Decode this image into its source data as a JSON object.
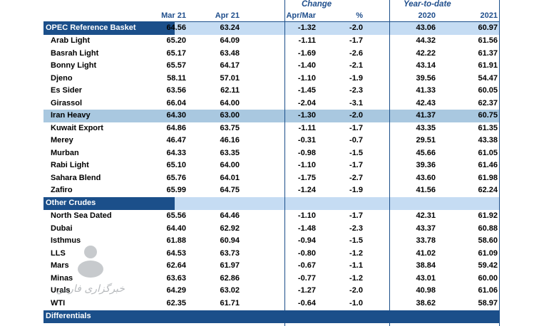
{
  "header": {
    "change": "Change",
    "ytd": "Year-to-date",
    "cols": [
      "Mar 21",
      "Apr 21",
      "Apr/Mar",
      "%",
      "2020",
      "2021"
    ]
  },
  "sections": {
    "opec": "OPEC Reference Basket",
    "other": "Other Crudes",
    "diff": "Differentials"
  },
  "basket_row": [
    "64.56",
    "63.24",
    "-1.32",
    "-2.0",
    "43.06",
    "60.97"
  ],
  "opec_rows": [
    {
      "name": "Arab Light",
      "v": [
        "65.20",
        "64.09",
        "-1.11",
        "-1.7",
        "44.32",
        "61.56"
      ]
    },
    {
      "name": "Basrah Light",
      "v": [
        "65.17",
        "63.48",
        "-1.69",
        "-2.6",
        "42.22",
        "61.37"
      ]
    },
    {
      "name": "Bonny Light",
      "v": [
        "65.57",
        "64.17",
        "-1.40",
        "-2.1",
        "43.14",
        "61.91"
      ]
    },
    {
      "name": "Djeno",
      "v": [
        "58.11",
        "57.01",
        "-1.10",
        "-1.9",
        "39.56",
        "54.47"
      ]
    },
    {
      "name": "Es Sider",
      "v": [
        "63.56",
        "62.11",
        "-1.45",
        "-2.3",
        "41.33",
        "60.05"
      ]
    },
    {
      "name": "Girassol",
      "v": [
        "66.04",
        "64.00",
        "-2.04",
        "-3.1",
        "42.43",
        "62.37"
      ]
    },
    {
      "name": "Iran Heavy",
      "v": [
        "64.30",
        "63.00",
        "-1.30",
        "-2.0",
        "41.37",
        "60.75"
      ]
    },
    {
      "name": "Kuwait Export",
      "v": [
        "64.86",
        "63.75",
        "-1.11",
        "-1.7",
        "43.35",
        "61.35"
      ]
    },
    {
      "name": "Merey",
      "v": [
        "46.47",
        "46.16",
        "-0.31",
        "-0.7",
        "29.51",
        "43.38"
      ]
    },
    {
      "name": "Murban",
      "v": [
        "64.33",
        "63.35",
        "-0.98",
        "-1.5",
        "45.66",
        "61.05"
      ]
    },
    {
      "name": "Rabi Light",
      "v": [
        "65.10",
        "64.00",
        "-1.10",
        "-1.7",
        "39.36",
        "61.46"
      ]
    },
    {
      "name": "Sahara Blend",
      "v": [
        "65.76",
        "64.01",
        "-1.75",
        "-2.7",
        "43.60",
        "61.98"
      ]
    },
    {
      "name": "Zafiro",
      "v": [
        "65.99",
        "64.75",
        "-1.24",
        "-1.9",
        "41.56",
        "62.24"
      ]
    }
  ],
  "other_rows": [
    {
      "name": "North Sea Dated",
      "v": [
        "65.56",
        "64.46",
        "-1.10",
        "-1.7",
        "42.31",
        "61.92"
      ]
    },
    {
      "name": "Dubai",
      "v": [
        "64.40",
        "62.92",
        "-1.48",
        "-2.3",
        "43.37",
        "60.88"
      ]
    },
    {
      "name": "Isthmus",
      "v": [
        "61.88",
        "60.94",
        "-0.94",
        "-1.5",
        "33.78",
        "58.60"
      ]
    },
    {
      "name": "LLS",
      "v": [
        "64.53",
        "63.73",
        "-0.80",
        "-1.2",
        "41.02",
        "61.09"
      ]
    },
    {
      "name": "Mars",
      "v": [
        "62.64",
        "61.97",
        "-0.67",
        "-1.1",
        "38.84",
        "59.42"
      ]
    },
    {
      "name": "Minas",
      "v": [
        "63.63",
        "62.86",
        "-0.77",
        "-1.2",
        "43.01",
        "60.00"
      ]
    },
    {
      "name": "Urals",
      "v": [
        "64.29",
        "63.02",
        "-1.27",
        "-2.0",
        "40.98",
        "61.06"
      ]
    },
    {
      "name": "WTI",
      "v": [
        "62.35",
        "61.71",
        "-0.64",
        "-1.0",
        "38.62",
        "58.97"
      ]
    }
  ],
  "highlight_row": "Iran Heavy",
  "watermark_text": "خبرگزاری فارس",
  "colors": {
    "section_bg": "#1b4f8a",
    "band": "#c5dcf3",
    "highlight": "#a9c8e0",
    "header_text": "#1f4e8c"
  }
}
